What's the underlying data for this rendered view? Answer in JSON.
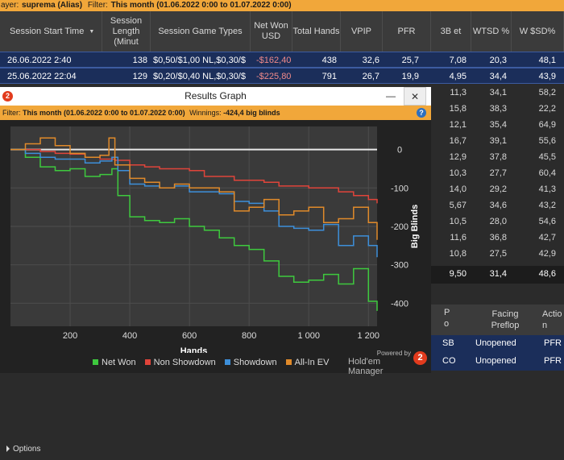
{
  "top_filter": {
    "player_prefix": "ayer:",
    "player": "suprema (Alias)",
    "filter_label": "Filter:",
    "filter_value": "This month (01.06.2022 0:00 to 01.07.2022 0:00)"
  },
  "columns": [
    "Session Start Time",
    "Session Length (Minut",
    "Session Game Types",
    "Net Won USD",
    "Total Hands",
    "VPIP",
    "PFR",
    "3B et",
    "WTSD %",
    "W $SD%"
  ],
  "sessions": [
    {
      "start": "26.06.2022 2:40",
      "length": "138",
      "game": "$0,50/$1,00 NL,$0,30/$",
      "net": "-$162,40",
      "hands": "438",
      "vpip": "32,6",
      "pfr": "25,7",
      "threebet": "7,08",
      "wtsd": "20,3",
      "wsd": "48,1"
    },
    {
      "start": "25.06.2022 22:04",
      "length": "129",
      "game": "$0,20/$0,40 NL,$0,30/$",
      "net": "-$225,80",
      "hands": "791",
      "vpip": "26,7",
      "pfr": "19,9",
      "threebet": "4,95",
      "wtsd": "34,4",
      "wsd": "43,9"
    }
  ],
  "hidden_rows": [
    {
      "threebet": "11,3",
      "wtsd": "34,1",
      "wsd": "58,2"
    },
    {
      "threebet": "15,8",
      "wtsd": "38,3",
      "wsd": "22,2"
    },
    {
      "threebet": "12,1",
      "wtsd": "35,4",
      "wsd": "64,9"
    },
    {
      "threebet": "16,7",
      "wtsd": "39,1",
      "wsd": "55,6"
    },
    {
      "threebet": "12,9",
      "wtsd": "37,8",
      "wsd": "45,5"
    },
    {
      "threebet": "10,3",
      "wtsd": "27,7",
      "wsd": "60,4"
    },
    {
      "threebet": "14,0",
      "wtsd": "29,2",
      "wsd": "41,3"
    },
    {
      "threebet": "5,67",
      "wtsd": "34,6",
      "wsd": "43,2"
    },
    {
      "threebet": "10,5",
      "wtsd": "28,0",
      "wsd": "54,6"
    },
    {
      "threebet": "11,6",
      "wtsd": "36,8",
      "wsd": "42,7"
    },
    {
      "threebet": "10,8",
      "wtsd": "27,5",
      "wsd": "42,9"
    }
  ],
  "totals": {
    "threebet": "9,50",
    "wtsd": "31,4",
    "wsd": "48,6"
  },
  "lower_table": {
    "headers": [
      "P o",
      "Facing Preflop",
      "Actio n"
    ],
    "rows": [
      {
        "pos": "SB",
        "facing": "Unopened",
        "action": "PFR"
      },
      {
        "pos": "CO",
        "facing": "Unopened",
        "action": "PFR"
      }
    ]
  },
  "graph_window": {
    "title": "Results Graph",
    "minimize": "—",
    "close": "✕",
    "filter_label": "Filter:",
    "filter_value": "This month (01.06.2022 0:00 to 01.07.2022 0:00)",
    "winnings_label": "Winnings:",
    "winnings_value": "-424,4 big blinds",
    "options_label": "Options",
    "powered_by": "Powered by",
    "brand": "Hold'em Manager",
    "brand_badge": "2",
    "app_badge": "2"
  },
  "chart_data": {
    "type": "line",
    "xlabel": "Hands",
    "ylabel": "Big Blinds",
    "xlim": [
      0,
      1229
    ],
    "ylim": [
      -460,
      60
    ],
    "x_ticks": [
      "200",
      "400",
      "600",
      "800",
      "1 000",
      "1 200"
    ],
    "y_ticks": [
      "0",
      "-100",
      "-200",
      "-300",
      "-400"
    ],
    "series": [
      {
        "name": "Net Won",
        "color": "#3ec93e",
        "x": [
          0,
          50,
          100,
          150,
          200,
          250,
          300,
          340,
          360,
          400,
          450,
          500,
          550,
          600,
          650,
          700,
          750,
          800,
          850,
          900,
          950,
          1000,
          1050,
          1100,
          1150,
          1200,
          1229
        ],
        "y": [
          0,
          -20,
          -45,
          -55,
          -50,
          -70,
          -65,
          -50,
          -120,
          -175,
          -185,
          -190,
          -180,
          -200,
          -210,
          -230,
          -250,
          -260,
          -290,
          -330,
          -345,
          -340,
          -325,
          -350,
          -310,
          -395,
          -420
        ]
      },
      {
        "name": "Non Showdown",
        "color": "#e0443a",
        "x": [
          0,
          50,
          100,
          150,
          200,
          250,
          300,
          350,
          400,
          450,
          500,
          550,
          600,
          650,
          700,
          750,
          800,
          850,
          900,
          950,
          1000,
          1050,
          1100,
          1150,
          1200,
          1229
        ],
        "y": [
          0,
          0,
          -5,
          -10,
          -12,
          -20,
          -25,
          -28,
          -40,
          -45,
          -50,
          -50,
          -55,
          -70,
          -70,
          -80,
          -80,
          -85,
          -95,
          -95,
          -100,
          -100,
          -110,
          -120,
          -130,
          -140
        ]
      },
      {
        "name": "Showdown",
        "color": "#3d8fd9",
        "x": [
          0,
          50,
          100,
          150,
          200,
          250,
          300,
          340,
          360,
          400,
          450,
          500,
          550,
          600,
          650,
          700,
          750,
          800,
          850,
          900,
          950,
          1000,
          1050,
          1100,
          1150,
          1200,
          1229
        ],
        "y": [
          0,
          -10,
          -20,
          -25,
          -25,
          -35,
          -30,
          -20,
          -55,
          -90,
          -95,
          -100,
          -95,
          -110,
          -110,
          -115,
          -135,
          -140,
          -160,
          -200,
          -205,
          -210,
          -195,
          -250,
          -225,
          -250,
          -280
        ]
      },
      {
        "name": "All-In EV",
        "color": "#e08a2a",
        "x": [
          0,
          50,
          100,
          150,
          200,
          250,
          300,
          330,
          350,
          400,
          450,
          500,
          550,
          600,
          650,
          700,
          750,
          800,
          850,
          900,
          950,
          1000,
          1050,
          1100,
          1150,
          1200,
          1229
        ],
        "y": [
          0,
          15,
          30,
          10,
          -10,
          -20,
          -15,
          30,
          -40,
          -75,
          -85,
          -100,
          -90,
          -100,
          -100,
          -110,
          -160,
          -150,
          -130,
          -170,
          -160,
          -150,
          -190,
          -180,
          -150,
          -190,
          -235
        ]
      }
    ],
    "legend": "bottom",
    "grid": true
  }
}
